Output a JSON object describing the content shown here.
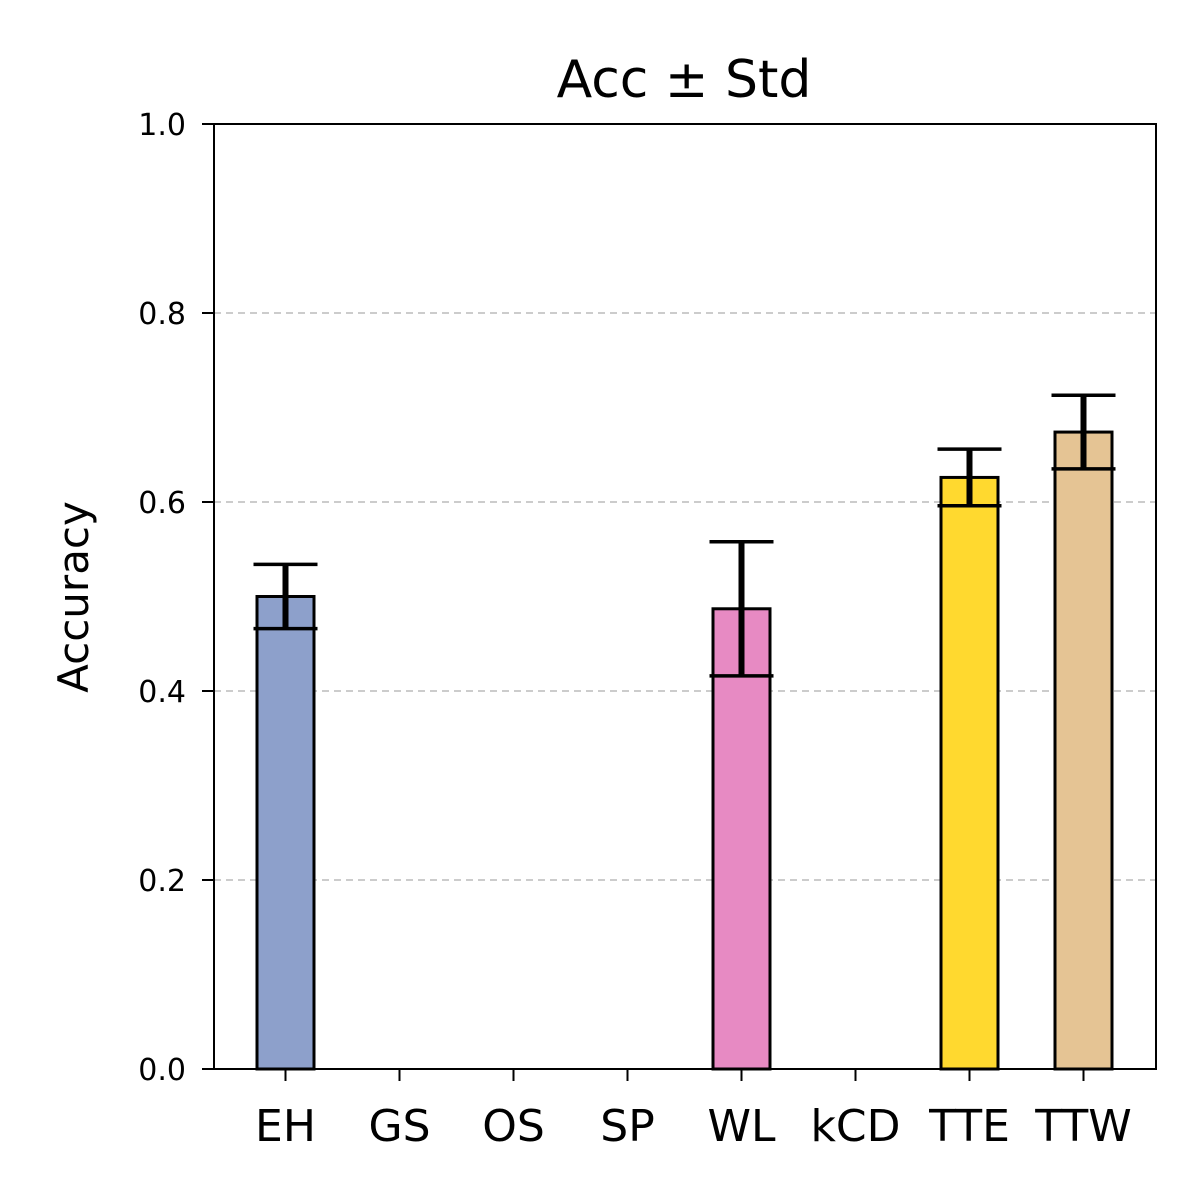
{
  "chart_data": {
    "type": "bar",
    "title": "Acc ± Std",
    "xlabel": "",
    "ylabel": "Accuracy",
    "ylim": [
      0,
      1.0
    ],
    "yticks": [
      "0.0",
      "0.2",
      "0.4",
      "0.6",
      "0.8",
      "1.0"
    ],
    "grid": "horizontal dashed",
    "categories": [
      "EH",
      "GS",
      "OS",
      "SP",
      "WL",
      "kCD",
      "TTE",
      "TTW"
    ],
    "values": [
      0.5,
      0.0,
      0.0,
      0.0,
      0.487,
      0.0,
      0.626,
      0.674
    ],
    "errors": [
      0.034,
      0.0,
      0.0,
      0.0,
      0.071,
      0.0,
      0.03,
      0.039
    ],
    "colors": [
      "#8da0cb",
      "#ffffff",
      "#ffffff",
      "#ffffff",
      "#e78ac3",
      "#ffffff",
      "#ffd92f",
      "#e5c494"
    ]
  }
}
